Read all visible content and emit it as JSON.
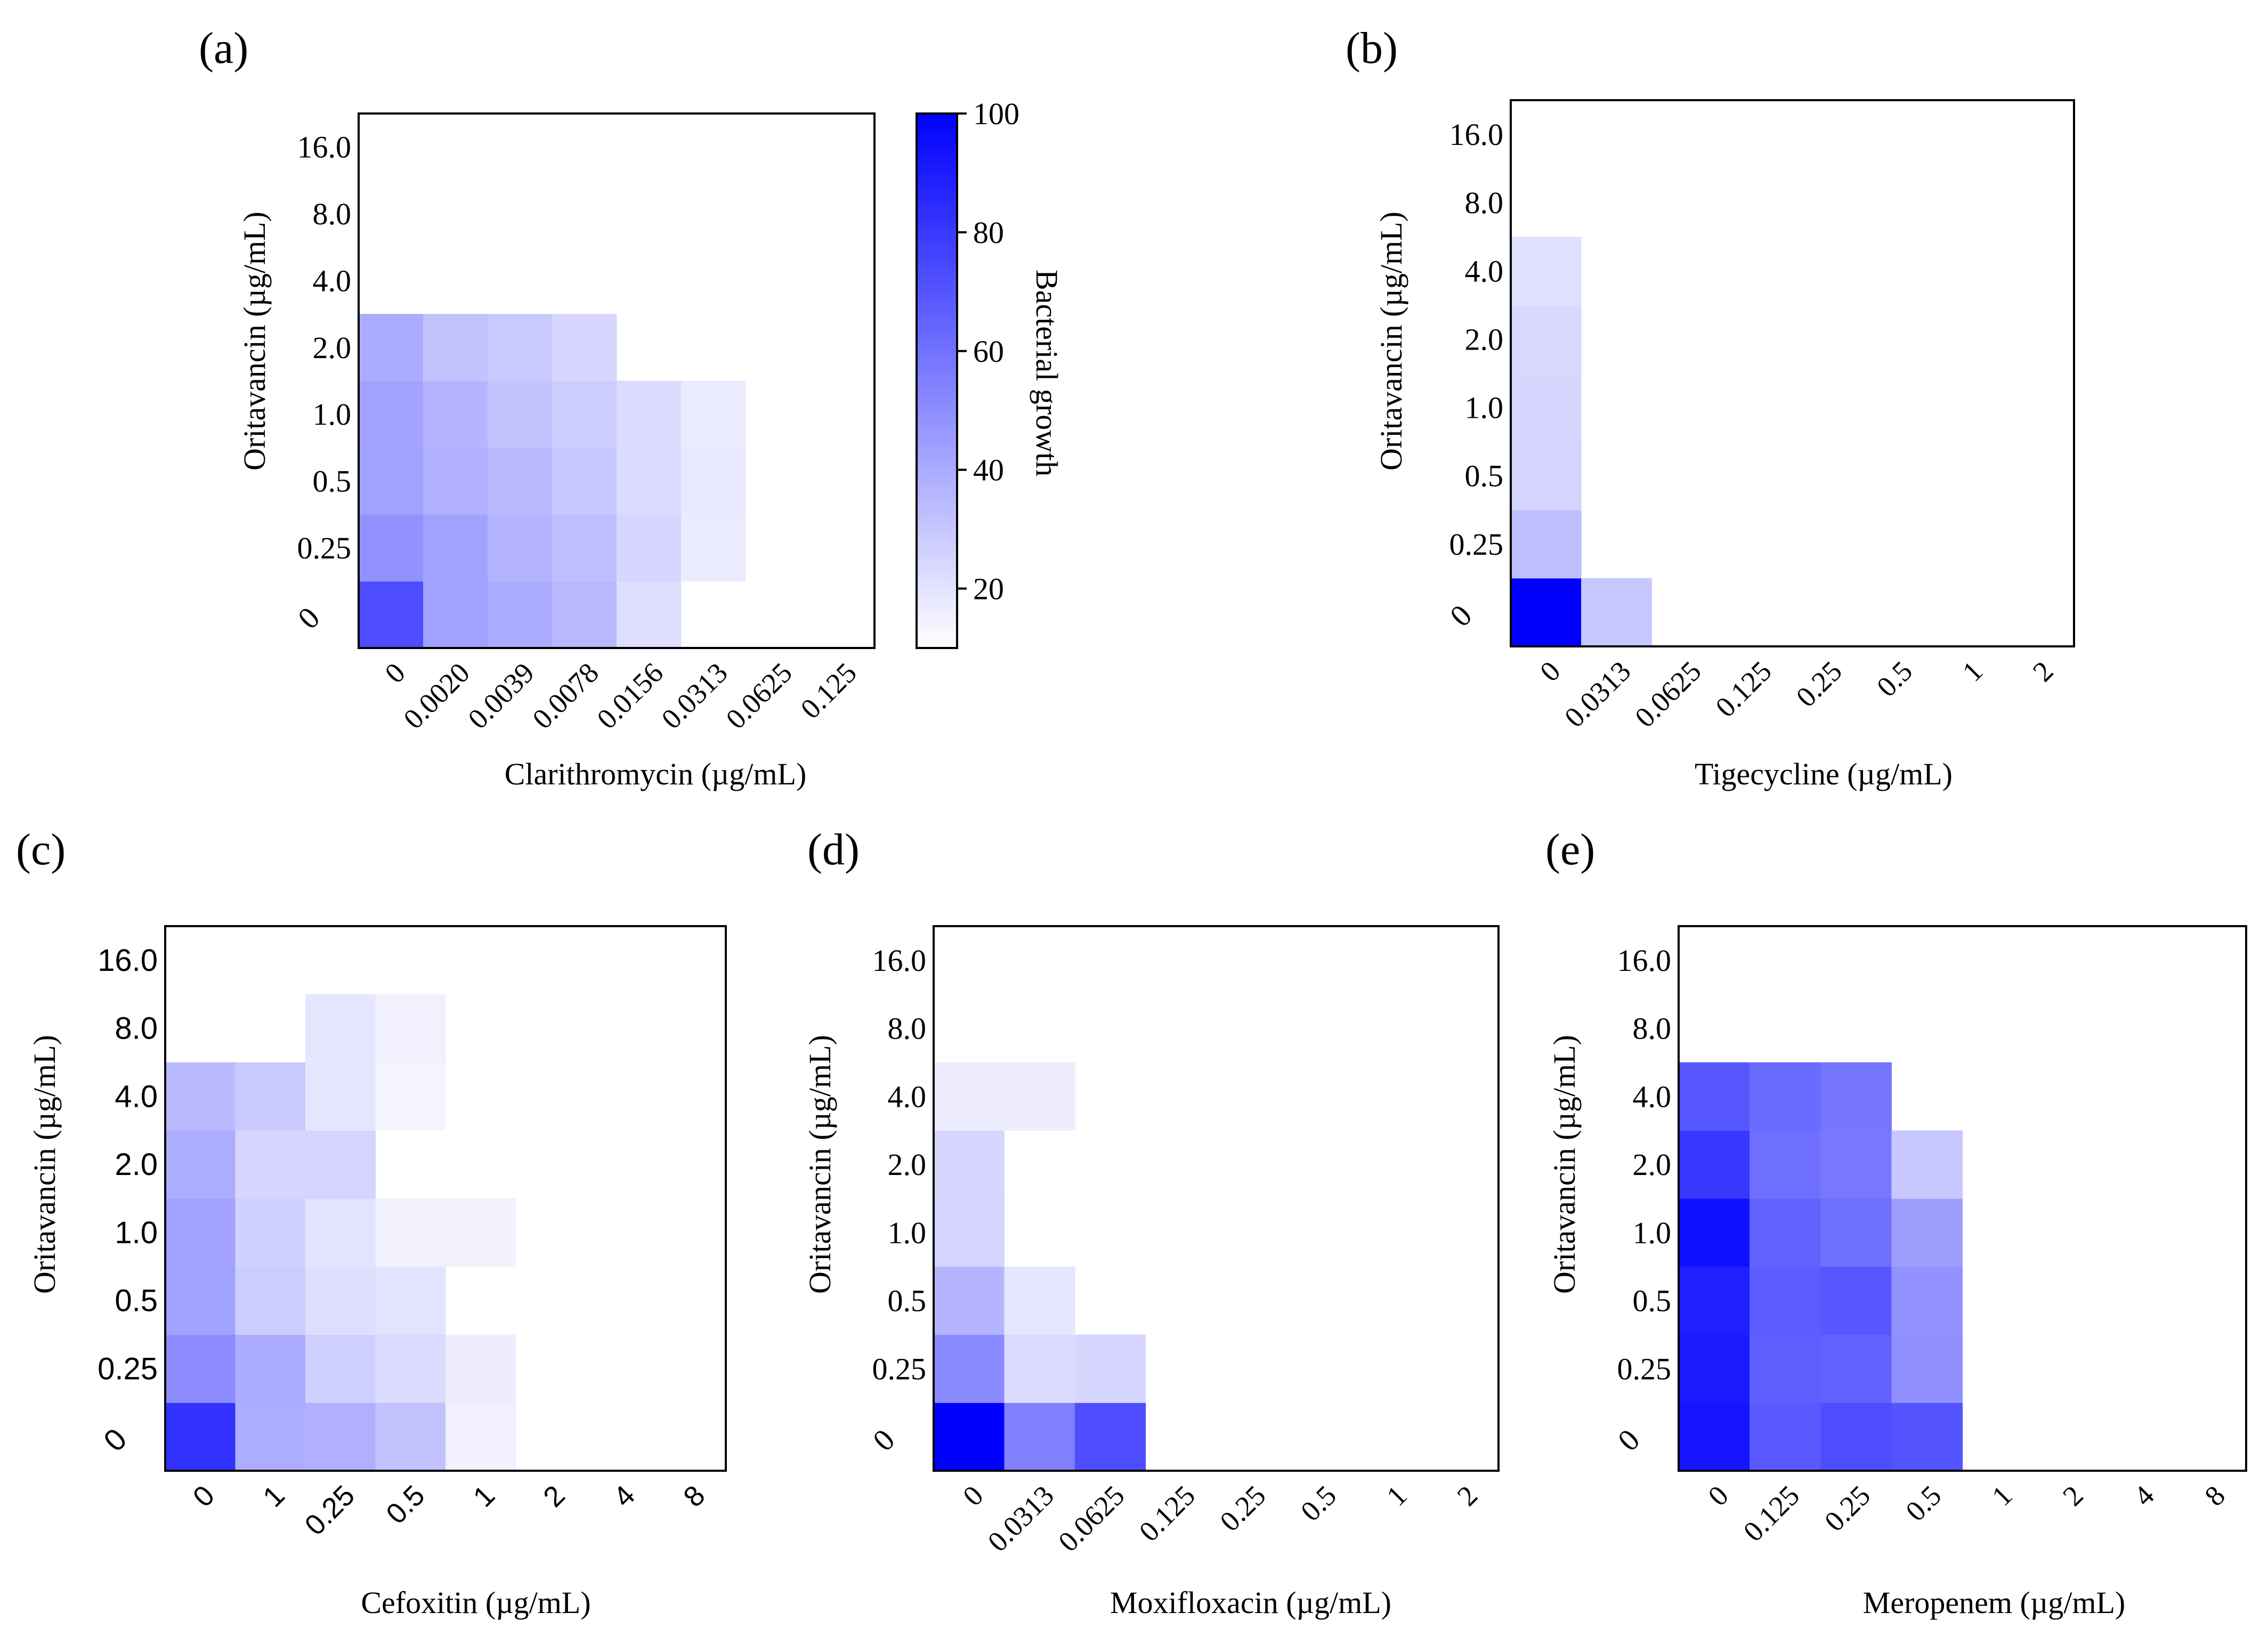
{
  "chart_data": [
    {
      "id": "a",
      "panel_label": "(a)",
      "type": "heatmap",
      "xlabel": "Clarithromycin (µg/mL)",
      "ylabel": "Oritavancin (µg/mL)",
      "x_ticks": [
        "0",
        "0.0020",
        "0.0039",
        "0.0078",
        "0.0156",
        "0.0313",
        "0.0625",
        "0.125"
      ],
      "y_ticks": [
        "0",
        "0.25",
        "0.5",
        "1.0",
        "2.0",
        "4.0",
        "8.0",
        "16.0"
      ],
      "sans_ticks": false,
      "values": [
        [
          70,
          37,
          33,
          28,
          13,
          0,
          0,
          0
        ],
        [
          43,
          37,
          30,
          25,
          16,
          8,
          0,
          0
        ],
        [
          37,
          31,
          27,
          22,
          14,
          9,
          0,
          0
        ],
        [
          36,
          29,
          24,
          20,
          14,
          8,
          0,
          0
        ],
        [
          33,
          24,
          21,
          16,
          0,
          0,
          0,
          0
        ],
        [
          0,
          0,
          0,
          0,
          0,
          0,
          0,
          0
        ],
        [
          0,
          0,
          0,
          0,
          0,
          0,
          0,
          0
        ],
        [
          0,
          0,
          0,
          0,
          0,
          0,
          0,
          0
        ]
      ],
      "colorbar": {
        "label": "Bacterial growth",
        "ticks": [
          "20",
          "40",
          "60",
          "80",
          "100"
        ],
        "range": [
          10,
          100
        ]
      }
    },
    {
      "id": "b",
      "panel_label": "(b)",
      "type": "heatmap",
      "xlabel": "Tigecycline (µg/mL)",
      "ylabel": "Oritavancin (µg/mL)",
      "x_ticks": [
        "0",
        "0.0313",
        "0.0625",
        "0.125",
        "0.25",
        "0.5",
        "1",
        "2"
      ],
      "y_ticks": [
        "0",
        "0.25",
        "0.5",
        "1.0",
        "2.0",
        "4.0",
        "8.0",
        "16.0"
      ],
      "sans_ticks": false,
      "values": [
        [
          100,
          22,
          0,
          0,
          0,
          0,
          0,
          0
        ],
        [
          25,
          0,
          0,
          0,
          0,
          0,
          0,
          0
        ],
        [
          17,
          0,
          0,
          0,
          0,
          0,
          0,
          0
        ],
        [
          16,
          0,
          0,
          0,
          0,
          0,
          0,
          0
        ],
        [
          15,
          0,
          0,
          0,
          0,
          0,
          0,
          0
        ],
        [
          12,
          0,
          0,
          0,
          0,
          0,
          0,
          0
        ],
        [
          0,
          0,
          0,
          0,
          0,
          0,
          0,
          0
        ],
        [
          0,
          0,
          0,
          0,
          0,
          0,
          0,
          0
        ]
      ]
    },
    {
      "id": "c",
      "panel_label": "(c)",
      "type": "heatmap",
      "xlabel": "Cefoxitin (µg/mL)",
      "ylabel": "Oritavancin (µg/mL)",
      "x_ticks": [
        "0",
        "1",
        "0.25",
        "0.5",
        "1",
        "2",
        "4",
        "8"
      ],
      "y_ticks": [
        "0",
        "0.25",
        "0.5",
        "1.0",
        "2.0",
        "4.0",
        "8.0",
        "16.0"
      ],
      "sans_ticks": true,
      "values": [
        [
          80,
          32,
          31,
          24,
          6,
          0,
          0,
          0
        ],
        [
          45,
          33,
          19,
          14,
          7,
          0,
          0,
          0
        ],
        [
          37,
          20,
          13,
          11,
          0,
          0,
          0,
          0
        ],
        [
          36,
          18,
          11,
          5,
          5,
          0,
          0,
          0
        ],
        [
          32,
          16,
          17,
          0,
          0,
          0,
          0,
          0
        ],
        [
          27,
          21,
          10,
          4,
          0,
          0,
          0,
          0
        ],
        [
          0,
          0,
          10,
          6,
          0,
          0,
          0,
          0
        ],
        [
          0,
          0,
          0,
          0,
          0,
          0,
          0,
          0
        ]
      ]
    },
    {
      "id": "d",
      "panel_label": "(d)",
      "type": "heatmap",
      "xlabel": "Moxifloxacin (µg/mL)",
      "ylabel": "Oritavancin (µg/mL)",
      "x_ticks": [
        "0",
        "0.0313",
        "0.0625",
        "0.125",
        "0.25",
        "0.5",
        "1",
        "2"
      ],
      "y_ticks": [
        "0",
        "0.25",
        "0.5",
        "1.0",
        "2.0",
        "4.0",
        "8.0",
        "16.0"
      ],
      "sans_ticks": false,
      "values": [
        [
          100,
          50,
          70,
          0,
          0,
          0,
          0,
          0
        ],
        [
          46,
          14,
          16,
          0,
          0,
          0,
          0,
          0
        ],
        [
          29,
          10,
          0,
          0,
          0,
          0,
          0,
          0
        ],
        [
          17,
          0,
          0,
          0,
          0,
          0,
          0,
          0
        ],
        [
          16,
          0,
          0,
          0,
          0,
          0,
          0,
          0
        ],
        [
          7,
          7,
          0,
          0,
          0,
          0,
          0,
          0
        ],
        [
          0,
          0,
          0,
          0,
          0,
          0,
          0,
          0
        ],
        [
          0,
          0,
          0,
          0,
          0,
          0,
          0,
          0
        ]
      ]
    },
    {
      "id": "e",
      "panel_label": "(e)",
      "type": "heatmap",
      "xlabel": "Meropenem (µg/mL)",
      "ylabel": "Oritavancin (µg/mL)",
      "x_ticks": [
        "0",
        "0.125",
        "0.25",
        "0.5",
        "1",
        "2",
        "4",
        "8"
      ],
      "y_ticks": [
        "0",
        "0.25",
        "0.5",
        "1.0",
        "2.0",
        "4.0",
        "8.0",
        "16.0"
      ],
      "sans_ticks": false,
      "values": [
        [
          92,
          65,
          70,
          67,
          0,
          0,
          0,
          0
        ],
        [
          90,
          63,
          62,
          44,
          0,
          0,
          0,
          0
        ],
        [
          88,
          64,
          66,
          43,
          0,
          0,
          0,
          0
        ],
        [
          94,
          62,
          56,
          38,
          0,
          0,
          0,
          0
        ],
        [
          78,
          57,
          53,
          22,
          0,
          0,
          0,
          0
        ],
        [
          66,
          58,
          54,
          0,
          0,
          0,
          0,
          0
        ],
        [
          0,
          0,
          0,
          0,
          0,
          0,
          0,
          0
        ],
        [
          0,
          0,
          0,
          0,
          0,
          0,
          0,
          0
        ]
      ]
    }
  ],
  "colors": {
    "low": "#ffffff",
    "high": "#0000ff"
  }
}
